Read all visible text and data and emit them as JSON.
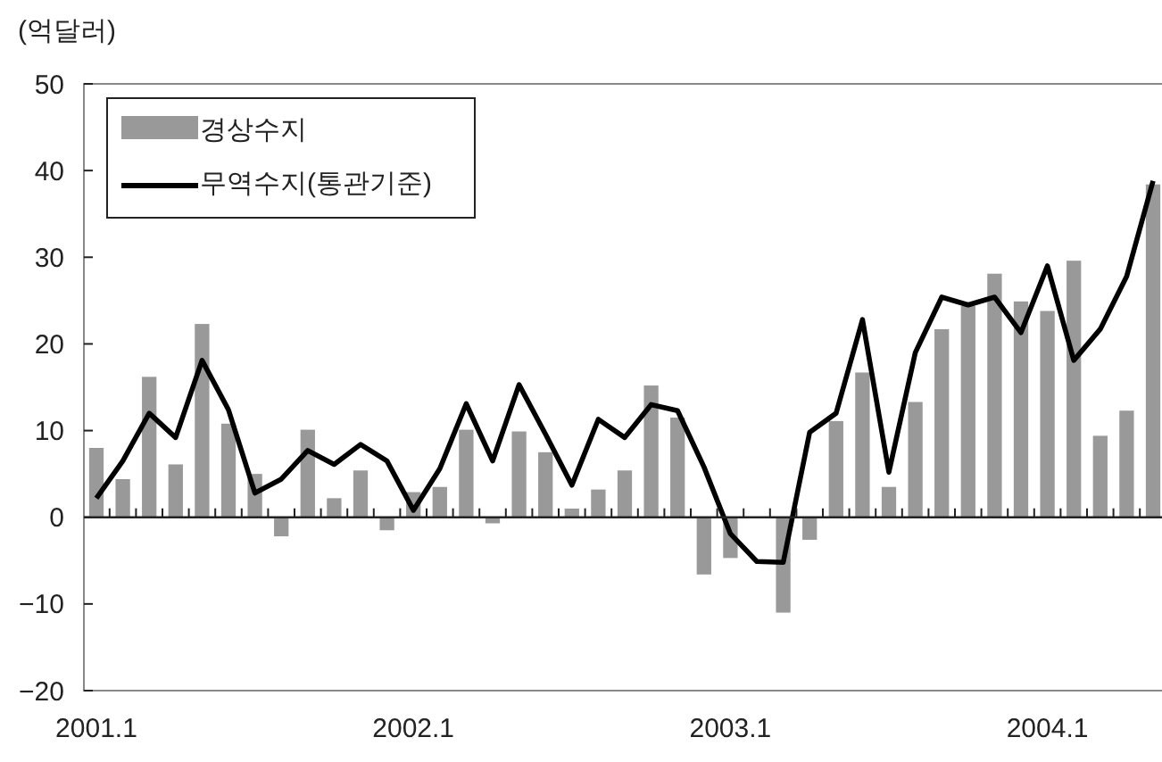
{
  "chart_data": {
    "type": "bar",
    "ylabel": "(억달러)",
    "categories": [
      "2001.1",
      null,
      null,
      null,
      null,
      null,
      null,
      null,
      null,
      null,
      null,
      null,
      "2002.1",
      null,
      null,
      null,
      null,
      null,
      null,
      null,
      null,
      null,
      null,
      null,
      "2003.1",
      null,
      null,
      null,
      null,
      null,
      null,
      null,
      null,
      null,
      null,
      null,
      "2004.1",
      null,
      null,
      null,
      null
    ],
    "series": [
      {
        "name": "경상수지",
        "color": "#999999",
        "values": [
          8.0,
          4.4,
          16.2,
          6.1,
          22.3,
          10.8,
          5.0,
          -2.2,
          10.1,
          2.2,
          5.4,
          -1.5,
          2.9,
          3.5,
          10.1,
          -0.7,
          9.9,
          7.5,
          1.0,
          3.2,
          5.4,
          15.2,
          11.5,
          -6.6,
          -4.7,
          0,
          -11.0,
          -2.6,
          11.1,
          16.7,
          3.5,
          13.3,
          21.7,
          24.4,
          28.1,
          24.9,
          23.8,
          29.6,
          9.4,
          12.3,
          38.4
        ]
      },
      {
        "name": "무역수지(통관기준)",
        "type": "line",
        "color": "#000000",
        "values": [
          2.2,
          6.5,
          12.0,
          9.2,
          18.1,
          12.4,
          2.8,
          4.4,
          7.7,
          6.1,
          8.4,
          6.5,
          0.8,
          5.6,
          13.1,
          6.5,
          15.3,
          9.6,
          3.7,
          11.3,
          9.2,
          13.0,
          12.3,
          5.8,
          -1.9,
          -5.1,
          -5.2,
          9.8,
          12.0,
          22.8,
          5.2,
          19.0,
          25.4,
          24.5,
          25.4,
          21.3,
          29.0,
          18.1,
          21.7,
          27.8,
          38.8
        ]
      }
    ],
    "ylim": [
      -20,
      50
    ],
    "yticks": [
      {
        "value": -20,
        "label": "−20"
      },
      {
        "value": -10,
        "label": "−10"
      },
      0,
      10,
      20,
      30,
      40,
      50
    ],
    "ref_lines": [
      {
        "axis": "y",
        "value": 0,
        "color": "#222222"
      }
    ],
    "legend": "top left",
    "grid": false,
    "line_style": "solid",
    "marker": "none"
  }
}
